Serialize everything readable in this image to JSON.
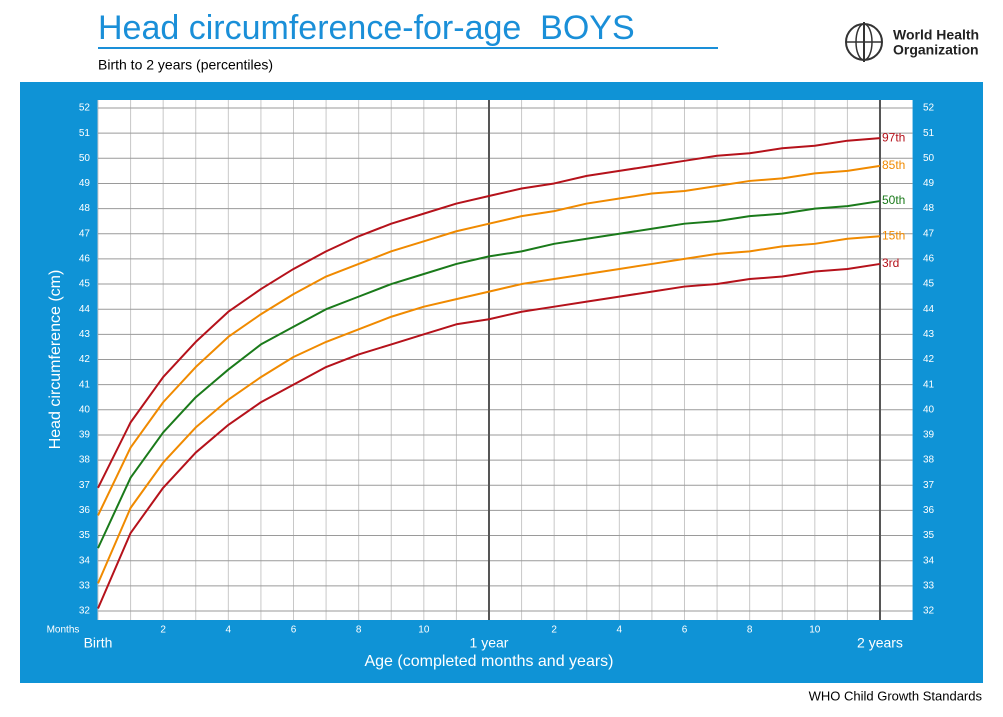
{
  "chart_data": {
    "type": "line",
    "title": "Head circumference-for-age  BOYS",
    "subtitle": "Birth to 2 years (percentiles)",
    "y_label": "Head circumference (cm)",
    "x_label": "Age (completed months and years)",
    "x_unit_label": "Months",
    "x": [
      0,
      1,
      2,
      3,
      4,
      5,
      6,
      7,
      8,
      9,
      10,
      11,
      12,
      13,
      14,
      15,
      16,
      17,
      18,
      19,
      20,
      21,
      22,
      23,
      24
    ],
    "series": [
      {
        "name": "3rd",
        "color": "#b5121b",
        "values": [
          32.1,
          35.1,
          36.9,
          38.3,
          39.4,
          40.3,
          41.0,
          41.7,
          42.2,
          42.6,
          43.0,
          43.4,
          43.6,
          43.9,
          44.1,
          44.3,
          44.5,
          44.7,
          44.9,
          45.0,
          45.2,
          45.3,
          45.5,
          45.6,
          45.8
        ]
      },
      {
        "name": "15th",
        "color": "#f08a00",
        "values": [
          33.1,
          36.1,
          37.9,
          39.3,
          40.4,
          41.3,
          42.1,
          42.7,
          43.2,
          43.7,
          44.1,
          44.4,
          44.7,
          45.0,
          45.2,
          45.4,
          45.6,
          45.8,
          46.0,
          46.2,
          46.3,
          46.5,
          46.6,
          46.8,
          46.9
        ]
      },
      {
        "name": "50th",
        "color": "#1a7a1a",
        "values": [
          34.5,
          37.3,
          39.1,
          40.5,
          41.6,
          42.6,
          43.3,
          44.0,
          44.5,
          45.0,
          45.4,
          45.8,
          46.1,
          46.3,
          46.6,
          46.8,
          47.0,
          47.2,
          47.4,
          47.5,
          47.7,
          47.8,
          48.0,
          48.1,
          48.3
        ]
      },
      {
        "name": "85th",
        "color": "#f08a00",
        "values": [
          35.8,
          38.5,
          40.3,
          41.7,
          42.9,
          43.8,
          44.6,
          45.3,
          45.8,
          46.3,
          46.7,
          47.1,
          47.4,
          47.7,
          47.9,
          48.2,
          48.4,
          48.6,
          48.7,
          48.9,
          49.1,
          49.2,
          49.4,
          49.5,
          49.7
        ]
      },
      {
        "name": "97th",
        "color": "#b5121b",
        "values": [
          36.9,
          39.5,
          41.3,
          42.7,
          43.9,
          44.8,
          45.6,
          46.3,
          46.9,
          47.4,
          47.8,
          48.2,
          48.5,
          48.8,
          49.0,
          49.3,
          49.5,
          49.7,
          49.9,
          50.1,
          50.2,
          50.4,
          50.5,
          50.7,
          50.8
        ]
      }
    ],
    "xlim": [
      0,
      25
    ],
    "ylim": [
      32,
      52
    ],
    "xticks": [
      {
        "value": 0,
        "label": "Birth"
      },
      2,
      4,
      6,
      8,
      10,
      {
        "value": 12,
        "label": "1 year"
      },
      {
        "value": 14,
        "label": "2"
      },
      {
        "value": 16,
        "label": "4"
      },
      {
        "value": 18,
        "label": "6"
      },
      {
        "value": 20,
        "label": "8"
      },
      {
        "value": 22,
        "label": "10"
      },
      {
        "value": 24,
        "label": "2 years"
      }
    ],
    "yticks": [
      32,
      33,
      34,
      35,
      36,
      37,
      38,
      39,
      40,
      41,
      42,
      43,
      44,
      45,
      46,
      47,
      48,
      49,
      50,
      51,
      52
    ],
    "grid": true
  },
  "logo": {
    "line1": "World Health",
    "line2": "Organization"
  },
  "footer": "WHO Child Growth Standards"
}
